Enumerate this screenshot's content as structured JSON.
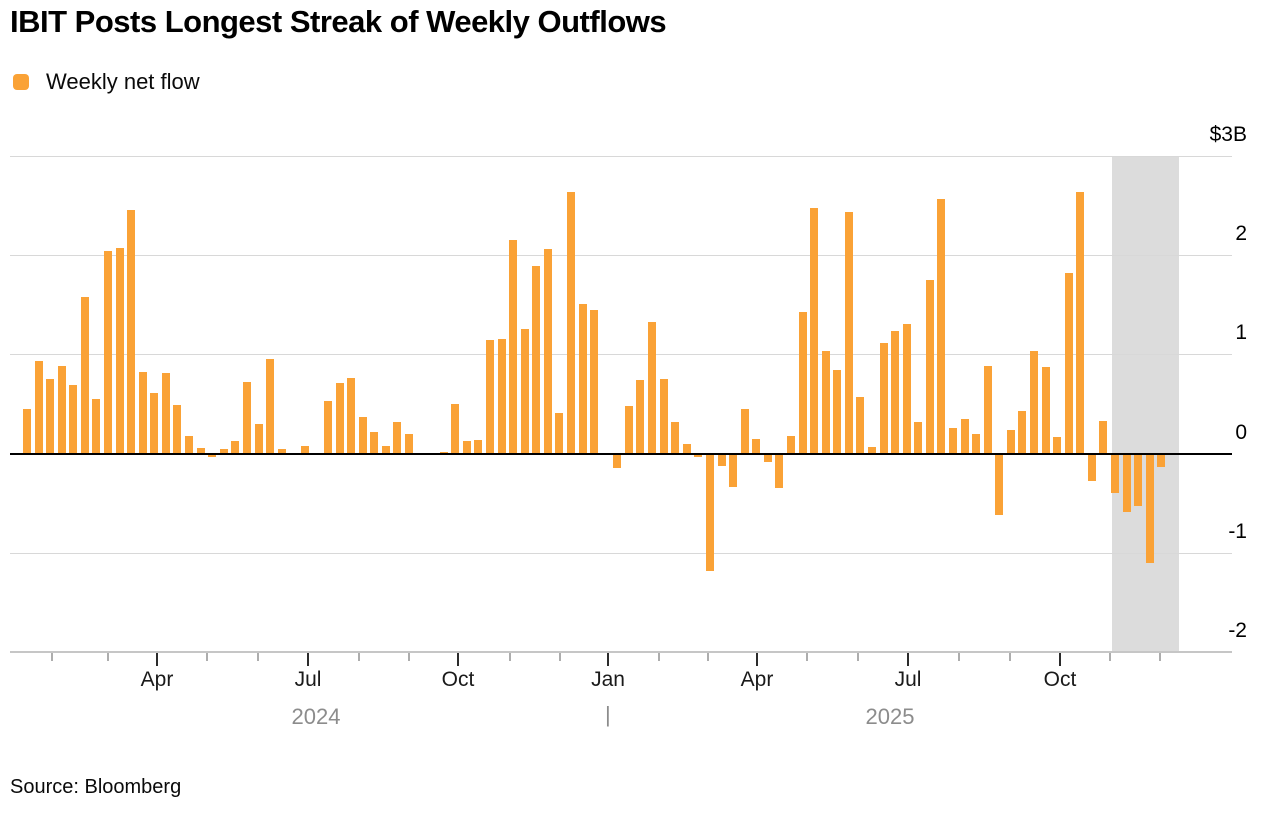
{
  "header": {
    "title": "IBIT Posts Longest Streak of Weekly Outflows"
  },
  "legend": {
    "label": "Weekly net flow",
    "color": "#FAA236"
  },
  "footer": {
    "source": "Source: Bloomberg"
  },
  "chart_data": {
    "type": "bar",
    "title": "IBIT Posts Longest Streak of Weekly Outflows",
    "series_name": "Weekly net flow",
    "unit": "billions USD",
    "frequency": "weekly",
    "x_range": "Jan 2024 - Dec 2025",
    "ylim": [
      -2,
      3
    ],
    "grid": true,
    "legend_position": "top-left",
    "y_axis_side": "right",
    "y_ticks": [
      {
        "label": "$3B",
        "value": 3
      },
      {
        "label": "2",
        "value": 2
      },
      {
        "label": "1",
        "value": 1
      },
      {
        "label": "0",
        "value": 0
      },
      {
        "label": "-1",
        "value": -1
      },
      {
        "label": "-2",
        "value": -2
      }
    ],
    "x_major_ticks": [
      {
        "label": "Apr",
        "x": 157
      },
      {
        "label": "Jul",
        "x": 308
      },
      {
        "label": "Oct",
        "x": 458
      },
      {
        "label": "Jan",
        "x": 608
      },
      {
        "label": "Apr",
        "x": 757
      },
      {
        "label": "Jul",
        "x": 908
      },
      {
        "label": "Oct",
        "x": 1060
      }
    ],
    "x_minor_ticks": [
      52,
      108,
      207,
      258,
      359,
      409,
      510,
      560,
      659,
      708,
      807,
      858,
      959,
      1010,
      1110,
      1160
    ],
    "year_labels": [
      {
        "label": "2024",
        "x": 316
      },
      {
        "label": "2025",
        "x": 890
      }
    ],
    "year_separator": {
      "label": "|",
      "x": 608
    },
    "values": [
      0.45,
      0.93,
      0.75,
      0.88,
      0.69,
      1.58,
      0.55,
      2.04,
      2.07,
      2.45,
      0.82,
      0.61,
      0.81,
      0.49,
      0.18,
      0.06,
      -0.04,
      0.05,
      0.13,
      0.72,
      0.3,
      0.95,
      0.05,
      0.01,
      0.08,
      0.01,
      0.53,
      0.71,
      0.76,
      0.37,
      0.22,
      0.08,
      0.32,
      0.2,
      0.01,
      -0.02,
      0.02,
      0.5,
      0.13,
      0.14,
      1.14,
      1.15,
      2.15,
      1.25,
      1.89,
      2.06,
      0.41,
      2.63,
      1.51,
      1.45,
      -0.02,
      -0.15,
      0.48,
      0.74,
      1.32,
      0.75,
      0.32,
      0.1,
      -0.04,
      -1.18,
      -0.13,
      -0.34,
      0.45,
      0.15,
      -0.09,
      -0.35,
      0.18,
      1.43,
      2.47,
      1.03,
      0.84,
      2.43,
      0.57,
      0.07,
      1.11,
      1.23,
      1.3,
      0.32,
      1.75,
      2.56,
      0.26,
      0.35,
      0.2,
      0.88,
      -0.62,
      0.24,
      0.43,
      1.03,
      0.87,
      0.17,
      1.82,
      2.63,
      -0.28,
      0.33,
      -0.4,
      -0.59,
      -0.53,
      -1.1,
      -0.14
    ],
    "highlight_last_n_weeks": 5,
    "colors": {
      "bar": "#FAA236",
      "highlight_band": "#DCDCDC",
      "gridline": "#D8D8D8",
      "zero_line": "#000000",
      "axis_line": "#C6C6C6",
      "month_label": "#1A1A1A",
      "year_label": "#8C8C8C"
    }
  }
}
